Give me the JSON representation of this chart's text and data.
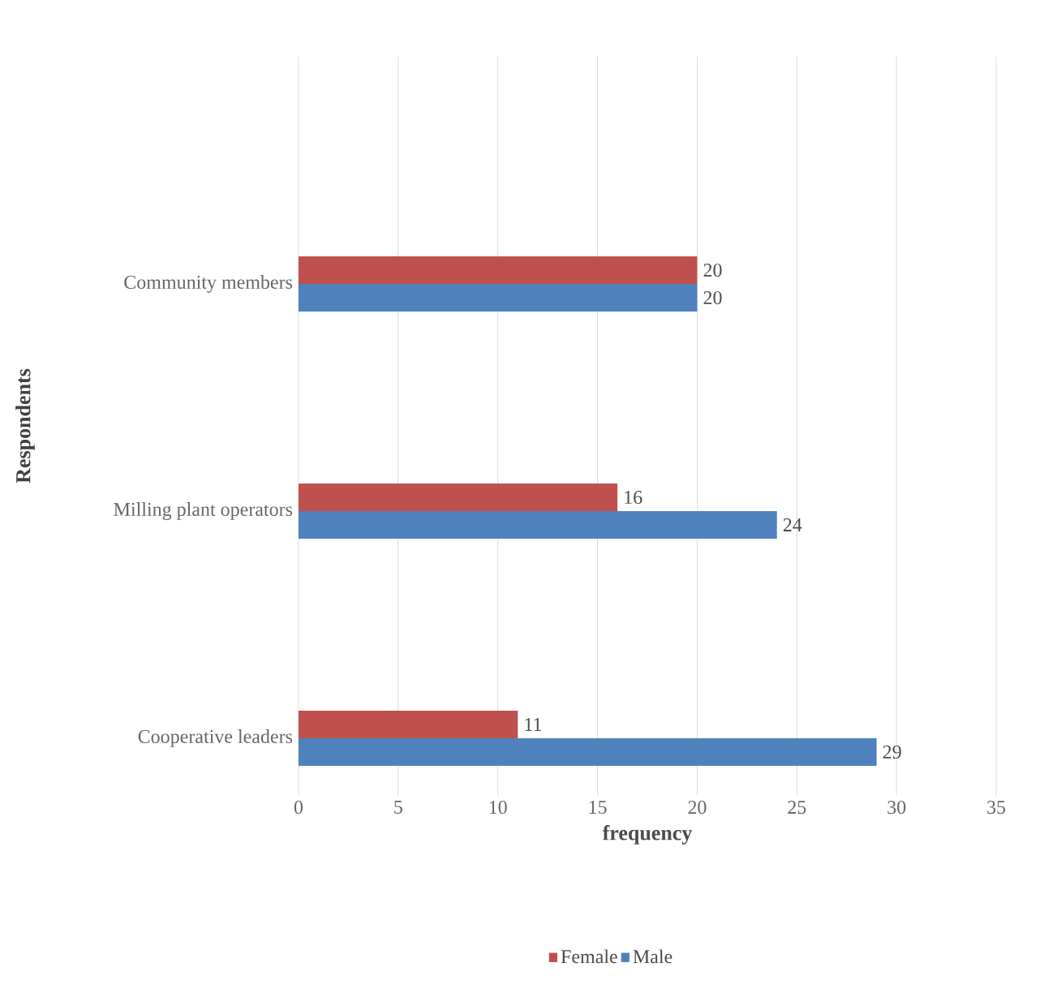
{
  "chart_data": {
    "type": "bar",
    "orientation": "horizontal",
    "xlabel": "frequency",
    "ylabel": "Respondents",
    "categories": [
      "Community members",
      "Milling plant operators",
      "Cooperative leaders"
    ],
    "series": [
      {
        "name": "Female",
        "color": "#c0504d",
        "values": [
          20,
          16,
          11
        ]
      },
      {
        "name": "Male",
        "color": "#4f81bd",
        "values": [
          20,
          24,
          29
        ]
      }
    ],
    "xlim": [
      0,
      35
    ],
    "xticks": [
      0,
      5,
      10,
      15,
      20,
      25,
      30,
      35
    ],
    "grid": "x",
    "legend": "bottom",
    "data_labels": true
  }
}
